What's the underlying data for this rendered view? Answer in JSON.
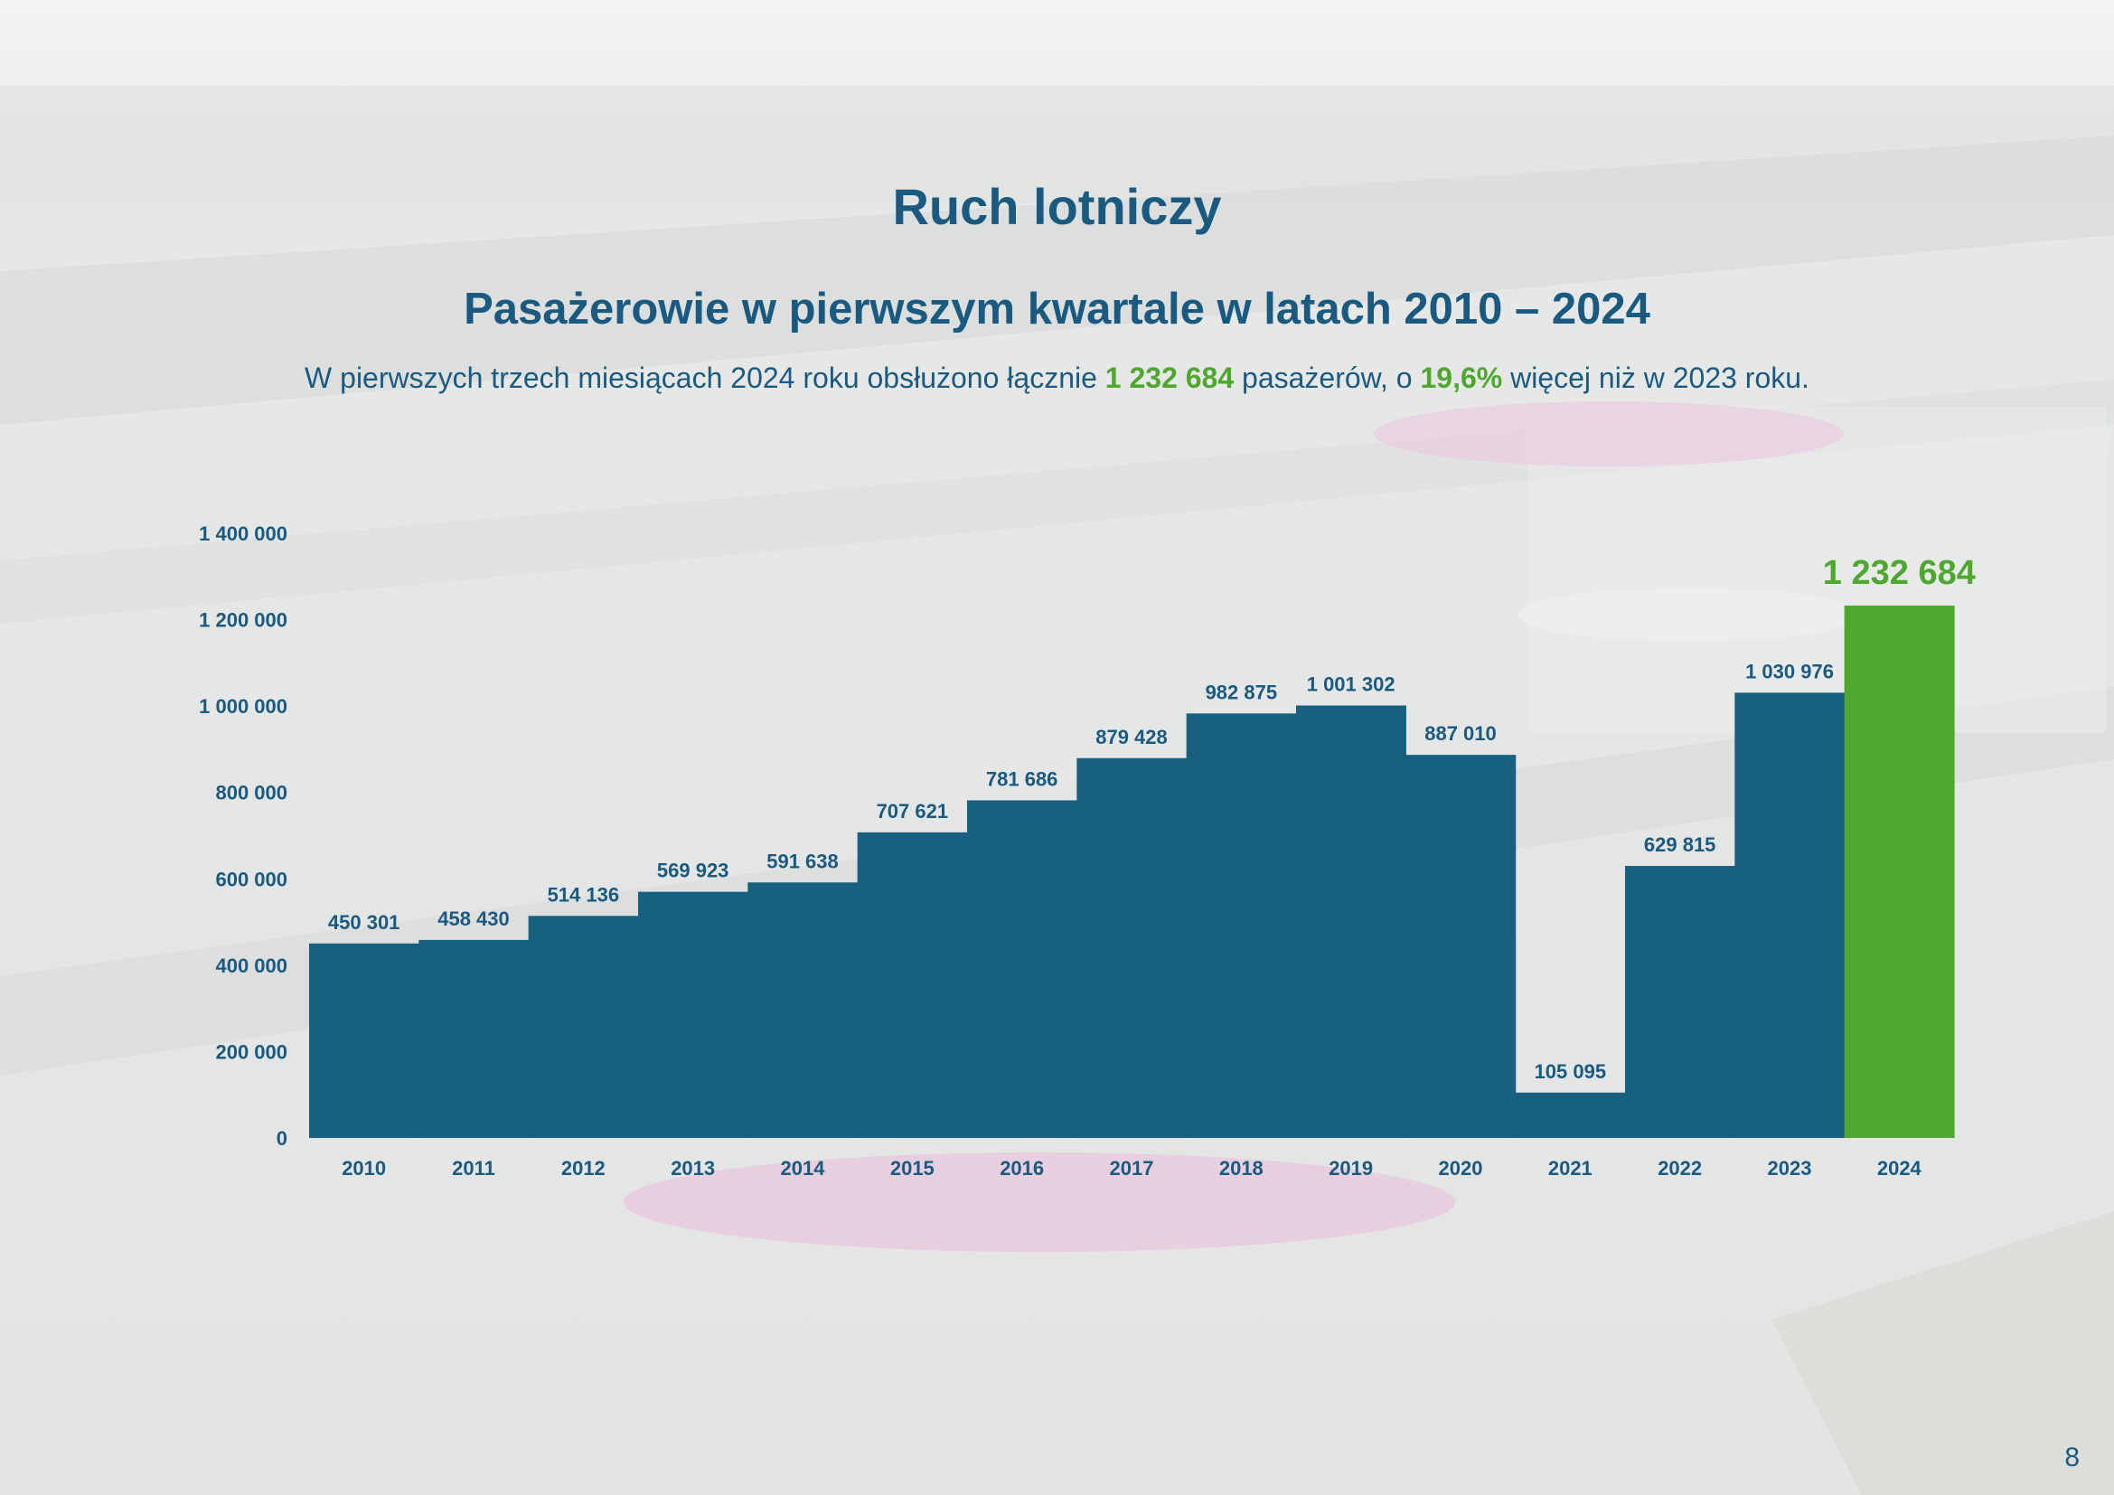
{
  "header": {
    "title": "Ruch lotniczy",
    "subtitle": "Pasażerowie w pierwszym kwartale w latach 2010 – 2024",
    "desc_part1": "W pierwszych trzech miesiącach 2024 roku obsłużono łącznie ",
    "desc_highlight_total": "1 232 684",
    "desc_part2": " pasażerów, o ",
    "desc_highlight_pct": "19,6%",
    "desc_part3": " więcej niż w 2023 roku."
  },
  "colors": {
    "primary": "#17607f",
    "highlight": "#4ea72f",
    "text": "#1a5a80"
  },
  "page_number": "8",
  "chart_data": {
    "type": "bar",
    "title": "",
    "xlabel": "",
    "ylabel": "",
    "ylim": [
      0,
      1400000
    ],
    "grid": false,
    "y_ticks": [
      0,
      200000,
      400000,
      600000,
      800000,
      1000000,
      1200000,
      1400000
    ],
    "y_tick_labels": [
      "0",
      "200 000",
      "400 000",
      "600 000",
      "800 000",
      "1 000 000",
      "1 200 000",
      "1 400 000"
    ],
    "categories": [
      "2010",
      "2011",
      "2012",
      "2013",
      "2014",
      "2015",
      "2016",
      "2017",
      "2018",
      "2019",
      "2020",
      "2021",
      "2022",
      "2023",
      "2024"
    ],
    "values": [
      450301,
      458430,
      514136,
      569923,
      591638,
      707621,
      781686,
      879428,
      982875,
      1001302,
      887010,
      105095,
      629815,
      1030976,
      1232684
    ],
    "value_labels": [
      "450 301",
      "458 430",
      "514 136",
      "569 923",
      "591 638",
      "707 621",
      "781 686",
      "879 428",
      "982 875",
      "1 001 302",
      "887 010",
      "105 095",
      "629 815",
      "1 030 976",
      "1 232 684"
    ],
    "highlight_index": 14
  }
}
